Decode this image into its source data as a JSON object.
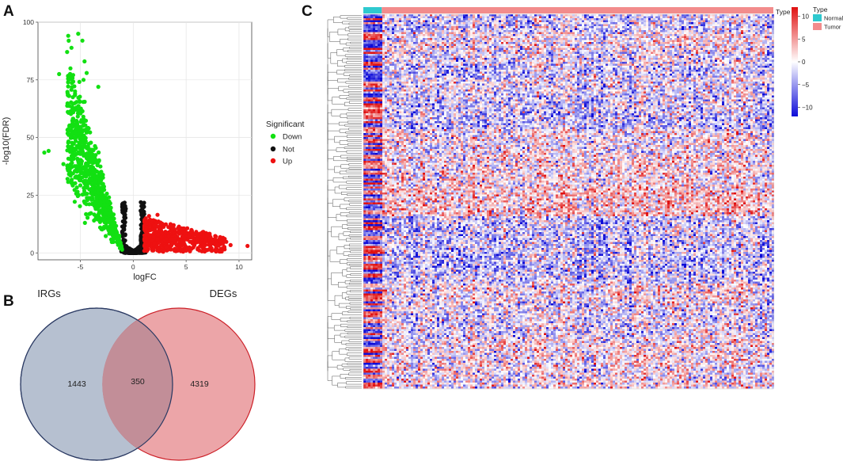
{
  "panels": {
    "a": "A",
    "b": "B",
    "c": "C"
  },
  "volcano": {
    "chart_data": {
      "type": "scatter",
      "title": "",
      "xlabel": "logFC",
      "ylabel": "-log10(FDR)",
      "xlim": [
        -9,
        11.2
      ],
      "ylim": [
        -3,
        100
      ],
      "xticks": [
        -5,
        0,
        5,
        10
      ],
      "xtick_labels": [
        "-5",
        "0",
        "5",
        "10"
      ],
      "yticks": [
        0,
        25,
        50,
        75,
        100
      ],
      "ytick_labels": [
        "0",
        "25",
        "50",
        "75",
        "100"
      ],
      "grid": true,
      "legend_title": "Significant",
      "legend_position": "right",
      "series": [
        {
          "name": "Down",
          "color": "#12e012",
          "approx_count": 1400,
          "points": [
            [
              -8.4,
              43.5
            ],
            [
              -8.0,
              44.2
            ],
            [
              -7.0,
              77.5
            ],
            [
              -6.6,
              38.5
            ],
            [
              -5.2,
              95.0
            ],
            [
              -4.8,
              92.0
            ],
            [
              -5.9,
              76.5
            ],
            [
              -4.6,
              83.0
            ],
            [
              -4.4,
              78.0
            ],
            [
              -4.7,
              75.0
            ],
            [
              -5.5,
              70.0
            ],
            [
              -3.3,
              72.0
            ]
          ]
        },
        {
          "name": "Not",
          "color": "#111111",
          "approx_count": 7000,
          "points": []
        },
        {
          "name": "Up",
          "color": "#ee1111",
          "approx_count": 800,
          "points": [
            [
              10.8,
              3.0
            ],
            [
              9.2,
              3.4
            ],
            [
              8.8,
              4.8
            ],
            [
              8.2,
              6.5
            ],
            [
              7.0,
              7.5
            ],
            [
              2.3,
              16.5
            ],
            [
              1.5,
              16.0
            ]
          ]
        }
      ]
    }
  },
  "venn": {
    "set_a": {
      "label": "IRGs",
      "color": "#b6c0d0",
      "stroke": "#2b3a63"
    },
    "set_b": {
      "label": "DEGs",
      "color": "#eca5a8",
      "stroke": "#cc2028"
    },
    "overlap_color": "#c28e98",
    "only_a": "1443",
    "intersection": "350",
    "only_b": "4319"
  },
  "heatmap": {
    "chart_data": {
      "type": "heatmap",
      "title": "",
      "rows_approx": 350,
      "samples": {
        "normal_fraction": 0.045,
        "tumor_fraction": 0.955
      },
      "annotation_title": "Type",
      "annotation_legend": [
        {
          "label": "Normal",
          "color": "#2ec9cf"
        },
        {
          "label": "Tumor",
          "color": "#f28c8c"
        }
      ],
      "color_scale": {
        "stops": [
          "#0d0bd8",
          "#ffffff",
          "#e01010"
        ],
        "range": [
          -12,
          12
        ],
        "ticks": [
          10,
          5,
          0,
          -5,
          -10
        ],
        "tick_labels": [
          "10",
          "5",
          "0",
          "−5",
          "−10"
        ]
      }
    }
  }
}
